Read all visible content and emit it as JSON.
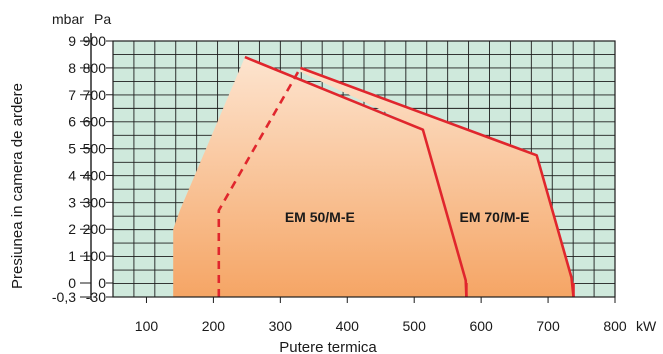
{
  "chart_data": {
    "type": "area",
    "title": "",
    "xlabel": "Putere termica",
    "ylabel": "Presiunea in camera de ardere",
    "x_unit": "kW",
    "y_units": [
      "mbar",
      "Pa"
    ],
    "xlim": [
      50,
      800
    ],
    "ylim_pa": [
      -30,
      900
    ],
    "grid": true,
    "x_ticks": [
      100,
      200,
      300,
      400,
      500,
      600,
      700,
      800
    ],
    "y_ticks_pa": [
      -30,
      0,
      100,
      200,
      300,
      400,
      500,
      600,
      700,
      800,
      900
    ],
    "y_tick_labels_pa": [
      "-30",
      "0",
      "100",
      "200",
      "300",
      "400",
      "500",
      "600",
      "700",
      "800",
      "900"
    ],
    "y_tick_labels_mbar": [
      "-0,3",
      "0",
      "1",
      "2",
      "3",
      "4",
      "5",
      "6",
      "7",
      "8",
      "9"
    ],
    "colors": {
      "grid_bg": "#cfe9dc",
      "grid_line": "#1d1d1d",
      "boundary": "#e0262d",
      "fill_top": "#fde4cf",
      "fill_bottom": "#f5a565"
    },
    "series": [
      {
        "name": "EM 50/M-E",
        "points": [
          [
            140,
            -30
          ],
          [
            140,
            200
          ],
          [
            150,
            270
          ],
          [
            247,
            840
          ],
          [
            513,
            570
          ],
          [
            577,
            10
          ],
          [
            578,
            -30
          ]
        ],
        "min_boundary_dashed": [
          [
            208,
            -30
          ],
          [
            208,
            270
          ],
          [
            330,
            800
          ]
        ]
      },
      {
        "name": "EM 70/M-E",
        "points": [
          [
            330,
            800
          ],
          [
            683,
            475
          ],
          [
            735,
            20
          ],
          [
            738,
            -30
          ]
        ]
      }
    ]
  }
}
